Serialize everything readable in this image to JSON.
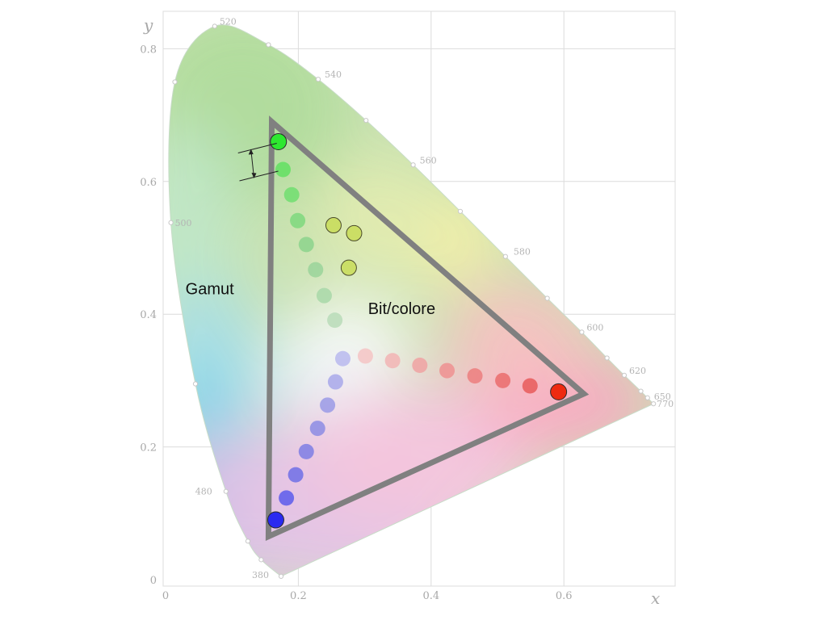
{
  "chart_data": {
    "type": "diagram",
    "diagram": "chromaticity",
    "xlabel": "x",
    "ylabel": "y",
    "xlim": [
      0,
      0.8
    ],
    "ylim": [
      0,
      0.85
    ],
    "x_ticks": [
      "0",
      "0.2",
      "0.4",
      "0.6"
    ],
    "y_ticks": [
      "0",
      "0.2",
      "0.4",
      "0.6",
      "0.8"
    ],
    "grid": true,
    "wavelength_labels": [
      {
        "label": "380",
        "x": 0.174,
        "y": 0.005
      },
      {
        "label": "480",
        "x": 0.091,
        "y": 0.133
      },
      {
        "label": "500",
        "x": 0.008,
        "y": 0.538
      },
      {
        "label": "520",
        "x": 0.074,
        "y": 0.834
      },
      {
        "label": "540",
        "x": 0.23,
        "y": 0.754
      },
      {
        "label": "560",
        "x": 0.373,
        "y": 0.625
      },
      {
        "label": "580",
        "x": 0.512,
        "y": 0.487
      },
      {
        "label": "600",
        "x": 0.627,
        "y": 0.373
      },
      {
        "label": "620",
        "x": 0.691,
        "y": 0.308
      },
      {
        "label": "650",
        "x": 0.726,
        "y": 0.274
      },
      {
        "label": "770",
        "x": 0.735,
        "y": 0.265
      }
    ],
    "locus_points": [
      {
        "x": 0.174,
        "y": 0.005
      },
      {
        "x": 0.144,
        "y": 0.03
      },
      {
        "x": 0.124,
        "y": 0.058
      },
      {
        "x": 0.091,
        "y": 0.133
      },
      {
        "x": 0.045,
        "y": 0.295
      },
      {
        "x": 0.008,
        "y": 0.538
      },
      {
        "x": 0.014,
        "y": 0.75
      },
      {
        "x": 0.074,
        "y": 0.834
      },
      {
        "x": 0.155,
        "y": 0.806
      },
      {
        "x": 0.23,
        "y": 0.754
      },
      {
        "x": 0.302,
        "y": 0.692
      },
      {
        "x": 0.373,
        "y": 0.625
      },
      {
        "x": 0.444,
        "y": 0.555
      },
      {
        "x": 0.512,
        "y": 0.487
      },
      {
        "x": 0.575,
        "y": 0.424
      },
      {
        "x": 0.627,
        "y": 0.373
      },
      {
        "x": 0.665,
        "y": 0.334
      },
      {
        "x": 0.691,
        "y": 0.308
      },
      {
        "x": 0.716,
        "y": 0.284
      },
      {
        "x": 0.726,
        "y": 0.274
      },
      {
        "x": 0.735,
        "y": 0.265
      }
    ],
    "gamut_triangle": [
      {
        "x": 0.16,
        "y": 0.69
      },
      {
        "x": 0.63,
        "y": 0.28
      },
      {
        "x": 0.155,
        "y": 0.065
      }
    ],
    "primaries": [
      {
        "name": "green",
        "x": 0.17,
        "y": 0.66,
        "color": "#2ee830"
      },
      {
        "name": "red",
        "x": 0.592,
        "y": 0.283,
        "color": "#ee2a10"
      },
      {
        "name": "blue",
        "x": 0.166,
        "y": 0.09,
        "color": "#2a2af0"
      }
    ],
    "steps": [
      {
        "x": 0.177,
        "y": 0.618,
        "color": "#62e062"
      },
      {
        "x": 0.19,
        "y": 0.58,
        "color": "#70de70"
      },
      {
        "x": 0.199,
        "y": 0.541,
        "color": "#7ed87e"
      },
      {
        "x": 0.212,
        "y": 0.505,
        "color": "#8cd48c"
      },
      {
        "x": 0.226,
        "y": 0.467,
        "color": "#9ad49a"
      },
      {
        "x": 0.239,
        "y": 0.428,
        "color": "#a8d8a8"
      },
      {
        "x": 0.255,
        "y": 0.391,
        "color": "#b8dcb8"
      },
      {
        "x": 0.253,
        "y": 0.534,
        "color": "#c8dc58"
      },
      {
        "x": 0.284,
        "y": 0.522,
        "color": "#c8dc58"
      },
      {
        "x": 0.276,
        "y": 0.47,
        "color": "#c8dc58"
      },
      {
        "x": 0.267,
        "y": 0.333,
        "color": "#b8b8ee"
      },
      {
        "x": 0.256,
        "y": 0.298,
        "color": "#a8a8ea"
      },
      {
        "x": 0.244,
        "y": 0.263,
        "color": "#9a9ae6"
      },
      {
        "x": 0.229,
        "y": 0.228,
        "color": "#8c8ce4"
      },
      {
        "x": 0.212,
        "y": 0.193,
        "color": "#7e7ee4"
      },
      {
        "x": 0.196,
        "y": 0.158,
        "color": "#6e6ee6"
      },
      {
        "x": 0.182,
        "y": 0.123,
        "color": "#5c5cec"
      },
      {
        "x": 0.301,
        "y": 0.337,
        "color": "#f4c4c4"
      },
      {
        "x": 0.342,
        "y": 0.33,
        "color": "#f2b4b4"
      },
      {
        "x": 0.383,
        "y": 0.323,
        "color": "#f0a2a2"
      },
      {
        "x": 0.424,
        "y": 0.315,
        "color": "#ee9090"
      },
      {
        "x": 0.466,
        "y": 0.307,
        "color": "#ec7e7e"
      },
      {
        "x": 0.508,
        "y": 0.3,
        "color": "#ea6c6c"
      },
      {
        "x": 0.549,
        "y": 0.292,
        "color": "#e85a5a"
      }
    ],
    "dimension_marker": {
      "top": {
        "x": 0.17,
        "y": 0.66
      },
      "bottom": {
        "x": 0.177,
        "y": 0.618
      }
    },
    "annotations": [
      {
        "text": "Gamut",
        "x": 0.03,
        "y": 0.43
      },
      {
        "text": "Bit/colore",
        "x": 0.305,
        "y": 0.4
      }
    ],
    "colors": {
      "triangle": "#808080",
      "grid": "#dcdcdc",
      "tick": "#a8a8a8"
    }
  }
}
